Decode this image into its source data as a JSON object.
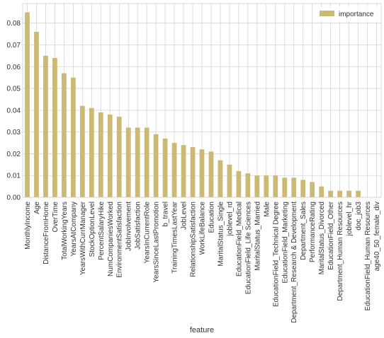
{
  "chart_data": {
    "type": "bar",
    "xlabel": "feature",
    "ylabel": "",
    "ylim": [
      0,
      0.089
    ],
    "yticks": [
      "0.00",
      "0.01",
      "0.02",
      "0.03",
      "0.04",
      "0.05",
      "0.06",
      "0.07",
      "0.08"
    ],
    "grid": true,
    "legend_position": "top-right",
    "bar_color": "#ccb974",
    "categories": [
      "MonthlyIncome",
      "Age",
      "DistanceFromHome",
      "OverTime",
      "TotalWorkingYears",
      "YearsAtCompany",
      "YearsWithCurrManager",
      "StockOptionLevel",
      "PercentSalaryHike",
      "NumCompaniesWorked",
      "EnvironmentSatisfaction",
      "JobInvolvement",
      "JobSatisfaction",
      "YearsInCurrentRole",
      "YearsSinceLastPromotion",
      "b_travel",
      "TrainingTimesLastYear",
      "JobLevel",
      "RelationshipSatisfaction",
      "WorkLifeBalance",
      "Education",
      "MaritalStatus_Single",
      "joblevel_rd",
      "EducationField_Medical",
      "EducationField_Life Sciences",
      "MaritalStatus_Married",
      "Male",
      "EducationField_Technical Degree",
      "EducationField_Marketing",
      "Department_Research & Development",
      "Department_Sales",
      "PerformanceRating",
      "MaritalStatus_Divorced",
      "EducationField_Other",
      "Department_Human Resources",
      "joblevel_hr",
      "doc_job3",
      "EducationField_Human Resources",
      "age40_50_female_div"
    ],
    "series": [
      {
        "name": "importance",
        "values": [
          0.085,
          0.076,
          0.065,
          0.064,
          0.057,
          0.055,
          0.042,
          0.041,
          0.039,
          0.038,
          0.037,
          0.032,
          0.032,
          0.032,
          0.029,
          0.027,
          0.025,
          0.024,
          0.023,
          0.022,
          0.021,
          0.017,
          0.015,
          0.012,
          0.011,
          0.01,
          0.01,
          0.01,
          0.009,
          0.009,
          0.008,
          0.007,
          0.005,
          0.003,
          0.003,
          0.003,
          0.003,
          0.0,
          0.0
        ]
      }
    ]
  }
}
